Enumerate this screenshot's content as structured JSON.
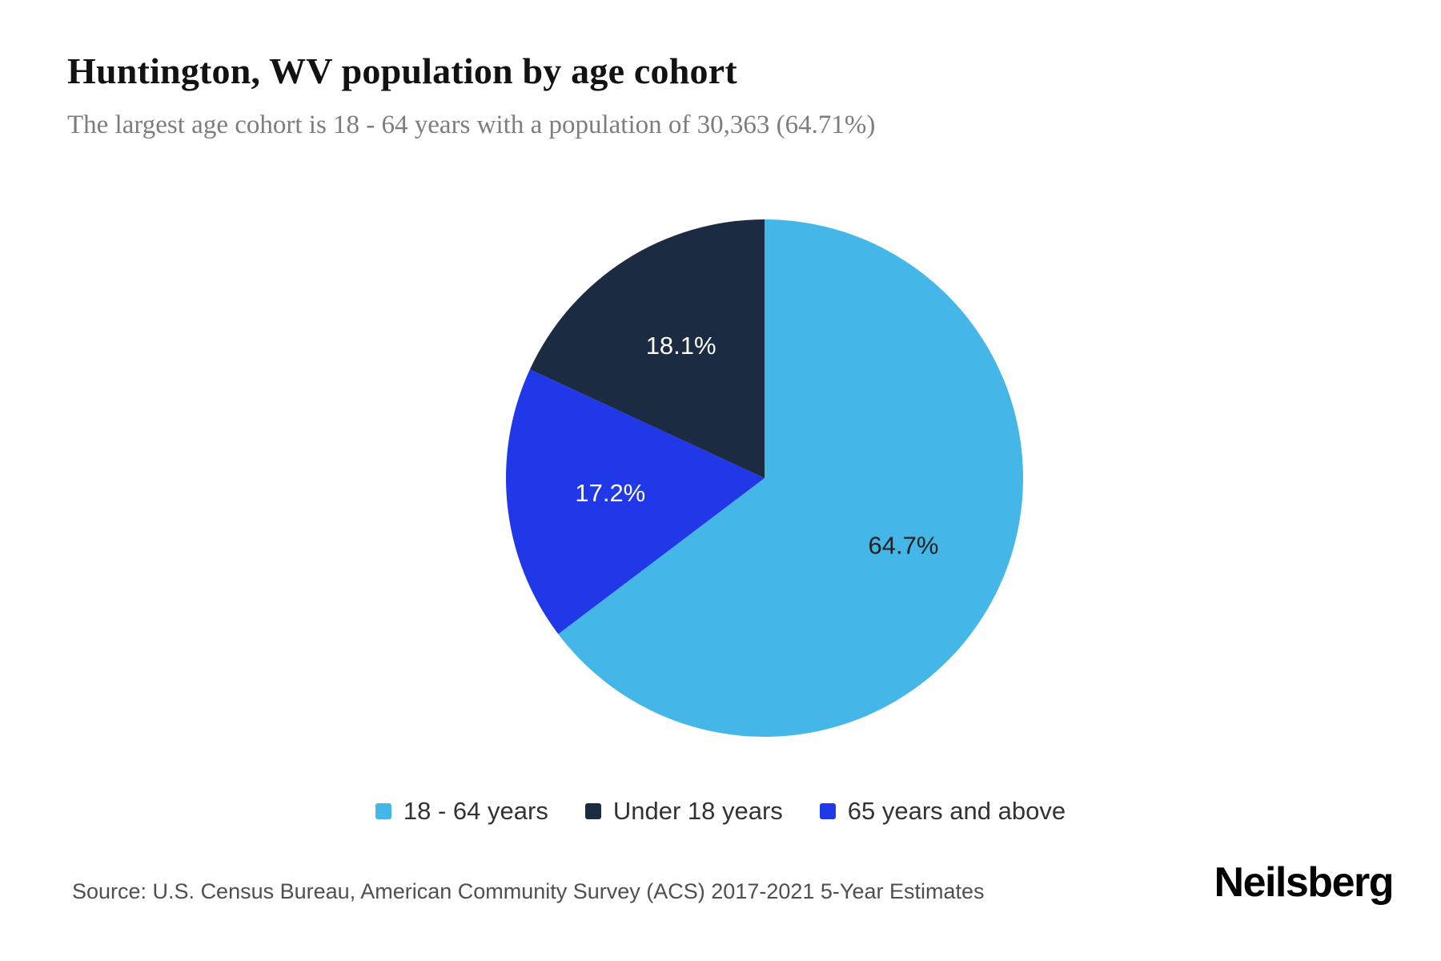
{
  "header": {
    "title": "Huntington, WV population by age cohort",
    "subtitle": "The largest age cohort is 18 - 64 years with a population of 30,363 (64.71%)"
  },
  "chart_data": {
    "type": "pie",
    "title": "Huntington, WV population by age cohort",
    "start_angle_deg": 0,
    "direction": "clockwise",
    "legend_position": "bottom",
    "slices": [
      {
        "label": "18 - 64 years",
        "value": 64.7,
        "display": "64.7%",
        "color": "#45b6e8",
        "label_color": "#222222"
      },
      {
        "label": "65 years and above",
        "value": 17.2,
        "display": "17.2%",
        "color": "#2038e8",
        "label_color": "#ffffff"
      },
      {
        "label": "Under 18 years",
        "value": 18.1,
        "display": "18.1%",
        "color": "#1b2b42",
        "label_color": "#ffffff"
      }
    ]
  },
  "legend": {
    "items": [
      {
        "label": "18 - 64 years",
        "color": "#45b6e8"
      },
      {
        "label": "Under 18 years",
        "color": "#1b2b42"
      },
      {
        "label": "65 years and above",
        "color": "#2038e8"
      }
    ]
  },
  "footer": {
    "source": "Source: U.S. Census Bureau, American Community Survey (ACS) 2017-2021 5-Year Estimates",
    "brand": "Neilsberg"
  }
}
